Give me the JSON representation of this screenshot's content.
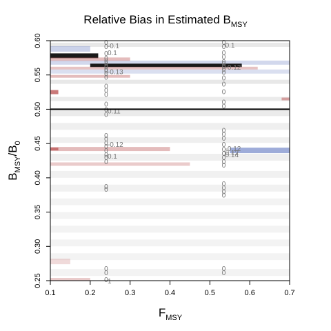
{
  "chart_data": {
    "type": "heatmap",
    "title": {
      "main": "Relative Bias in Estimated B",
      "sub": "MSY"
    },
    "xlabel": {
      "main": "F",
      "sub": "MSY"
    },
    "ylabel": {
      "main": "B",
      "sub1": "MSY",
      "mid": "/B",
      "sub2": "0"
    },
    "xlim": [
      0.1,
      0.7
    ],
    "ylim": [
      0.25,
      0.6
    ],
    "x_ticks": [
      "0.1",
      "0.2",
      "0.3",
      "0.4",
      "0.5",
      "0.6",
      "0.7"
    ],
    "y_ticks": [
      "0.25",
      "0.30",
      "0.35",
      "0.40",
      "0.45",
      "0.50",
      "0.55",
      "0.60"
    ],
    "reference_line": {
      "y": 0.5
    },
    "colors": {
      "positive": "#c46a6a",
      "negative": "#6a7fc4",
      "neutral": "#d8d8d8",
      "extreme": "#1a1a1a",
      "reference": "#000000"
    },
    "bands": [
      {
        "x0": 0.1,
        "x1": 0.7,
        "y": 0.594,
        "h": 0.006,
        "color": "#d8d8d8",
        "opacity": 0.6
      },
      {
        "x0": 0.1,
        "x1": 0.2,
        "y": 0.588,
        "h": 0.008,
        "color": "#6a7fc4",
        "opacity": 0.35
      },
      {
        "x0": 0.1,
        "x1": 0.22,
        "y": 0.578,
        "h": 0.007,
        "color": "#1a1a1a",
        "opacity": 1.0
      },
      {
        "x0": 0.1,
        "x1": 0.3,
        "y": 0.573,
        "h": 0.005,
        "color": "#c46a6a",
        "opacity": 0.45
      },
      {
        "x0": 0.1,
        "x1": 0.7,
        "y": 0.568,
        "h": 0.006,
        "color": "#6a7fc4",
        "opacity": 0.3
      },
      {
        "x0": 0.2,
        "x1": 0.58,
        "y": 0.564,
        "h": 0.005,
        "color": "#1a1a1a",
        "opacity": 1.0
      },
      {
        "x0": 0.1,
        "x1": 0.62,
        "y": 0.56,
        "h": 0.004,
        "color": "#c46a6a",
        "opacity": 0.4
      },
      {
        "x0": 0.1,
        "x1": 0.7,
        "y": 0.555,
        "h": 0.006,
        "color": "#6a7fc4",
        "opacity": 0.25
      },
      {
        "x0": 0.1,
        "x1": 0.3,
        "y": 0.548,
        "h": 0.004,
        "color": "#c46a6a",
        "opacity": 0.45
      },
      {
        "x0": 0.1,
        "x1": 0.7,
        "y": 0.54,
        "h": 0.006,
        "color": "#d8d8d8",
        "opacity": 0.6
      },
      {
        "x0": 0.1,
        "x1": 0.12,
        "y": 0.525,
        "h": 0.006,
        "color": "#c46a6a",
        "opacity": 0.9
      },
      {
        "x0": 0.1,
        "x1": 0.7,
        "y": 0.515,
        "h": 0.006,
        "color": "#d8d8d8",
        "opacity": 0.5
      },
      {
        "x0": 0.68,
        "x1": 0.7,
        "y": 0.515,
        "h": 0.004,
        "color": "#c46a6a",
        "opacity": 0.6
      },
      {
        "x0": 0.1,
        "x1": 0.7,
        "y": 0.495,
        "h": 0.01,
        "color": "#d8d8d8",
        "opacity": 0.5
      },
      {
        "x0": 0.1,
        "x1": 0.7,
        "y": 0.475,
        "h": 0.01,
        "color": "#d8d8d8",
        "opacity": 0.4
      },
      {
        "x0": 0.1,
        "x1": 0.7,
        "y": 0.455,
        "h": 0.008,
        "color": "#d8d8d8",
        "opacity": 0.4
      },
      {
        "x0": 0.1,
        "x1": 0.4,
        "y": 0.442,
        "h": 0.006,
        "color": "#c46a6a",
        "opacity": 0.45
      },
      {
        "x0": 0.1,
        "x1": 0.12,
        "y": 0.442,
        "h": 0.004,
        "color": "#c46a6a",
        "opacity": 0.95
      },
      {
        "x0": 0.55,
        "x1": 0.7,
        "y": 0.44,
        "h": 0.008,
        "color": "#6a7fc4",
        "opacity": 0.65
      },
      {
        "x0": 0.1,
        "x1": 0.7,
        "y": 0.43,
        "h": 0.01,
        "color": "#d8d8d8",
        "opacity": 0.4
      },
      {
        "x0": 0.1,
        "x1": 0.45,
        "y": 0.42,
        "h": 0.005,
        "color": "#c46a6a",
        "opacity": 0.35
      },
      {
        "x0": 0.1,
        "x1": 0.7,
        "y": 0.405,
        "h": 0.01,
        "color": "#d8d8d8",
        "opacity": 0.35
      },
      {
        "x0": 0.1,
        "x1": 0.7,
        "y": 0.385,
        "h": 0.01,
        "color": "#d8d8d8",
        "opacity": 0.35
      },
      {
        "x0": 0.1,
        "x1": 0.7,
        "y": 0.365,
        "h": 0.01,
        "color": "#d8d8d8",
        "opacity": 0.3
      },
      {
        "x0": 0.1,
        "x1": 0.7,
        "y": 0.345,
        "h": 0.01,
        "color": "#d8d8d8",
        "opacity": 0.3
      },
      {
        "x0": 0.1,
        "x1": 0.7,
        "y": 0.325,
        "h": 0.01,
        "color": "#d8d8d8",
        "opacity": 0.3
      },
      {
        "x0": 0.1,
        "x1": 0.7,
        "y": 0.305,
        "h": 0.01,
        "color": "#d8d8d8",
        "opacity": 0.3
      },
      {
        "x0": 0.1,
        "x1": 0.7,
        "y": 0.285,
        "h": 0.01,
        "color": "#d8d8d8",
        "opacity": 0.3
      },
      {
        "x0": 0.1,
        "x1": 0.15,
        "y": 0.278,
        "h": 0.008,
        "color": "#c46a6a",
        "opacity": 0.25
      },
      {
        "x0": 0.1,
        "x1": 0.7,
        "y": 0.262,
        "h": 0.01,
        "color": "#d8d8d8",
        "opacity": 0.3
      },
      {
        "x0": 0.1,
        "x1": 0.2,
        "y": 0.252,
        "h": 0.004,
        "color": "#c46a6a",
        "opacity": 0.35
      }
    ],
    "contour_labels": [
      {
        "x": 0.24,
        "y": 0.593,
        "text": "-0.1"
      },
      {
        "x": 0.24,
        "y": 0.583,
        "text": "0.1"
      },
      {
        "x": 0.24,
        "y": 0.555,
        "text": "-0.13"
      },
      {
        "x": 0.24,
        "y": 0.498,
        "text": "0.11"
      },
      {
        "x": 0.24,
        "y": 0.449,
        "text": "-0.12"
      },
      {
        "x": 0.24,
        "y": 0.432,
        "text": "0.1"
      },
      {
        "x": 0.24,
        "y": 0.25,
        "text": "1"
      },
      {
        "x": 0.535,
        "y": 0.594,
        "text": "0.1"
      },
      {
        "x": 0.535,
        "y": 0.562,
        "text": "-0.12"
      },
      {
        "x": 0.535,
        "y": 0.443,
        "text": "-0.12"
      },
      {
        "x": 0.535,
        "y": 0.437,
        "text": "0.12"
      },
      {
        "x": 0.535,
        "y": 0.434,
        "text": "0.14"
      }
    ],
    "contour_zeros": [
      {
        "x": 0.24,
        "y": [
          0.598,
          0.592,
          0.582,
          0.575,
          0.571,
          0.567,
          0.563,
          0.559,
          0.556,
          0.552,
          0.547,
          0.534,
          0.528,
          0.522,
          0.508,
          0.5,
          0.493,
          0.462,
          0.457,
          0.451,
          0.446,
          0.44,
          0.434,
          0.43,
          0.424,
          0.388,
          0.384,
          0.268,
          0.262,
          0.252
        ]
      },
      {
        "x": 0.535,
        "y": [
          0.598,
          0.592,
          0.583,
          0.577,
          0.57,
          0.567,
          0.563,
          0.559,
          0.554,
          0.546,
          0.537,
          0.526,
          0.511,
          0.505,
          0.47,
          0.464,
          0.458,
          0.449,
          0.442,
          0.436,
          0.43,
          0.424,
          0.419,
          0.392,
          0.386,
          0.38,
          0.375,
          0.268,
          0.262
        ]
      }
    ]
  }
}
